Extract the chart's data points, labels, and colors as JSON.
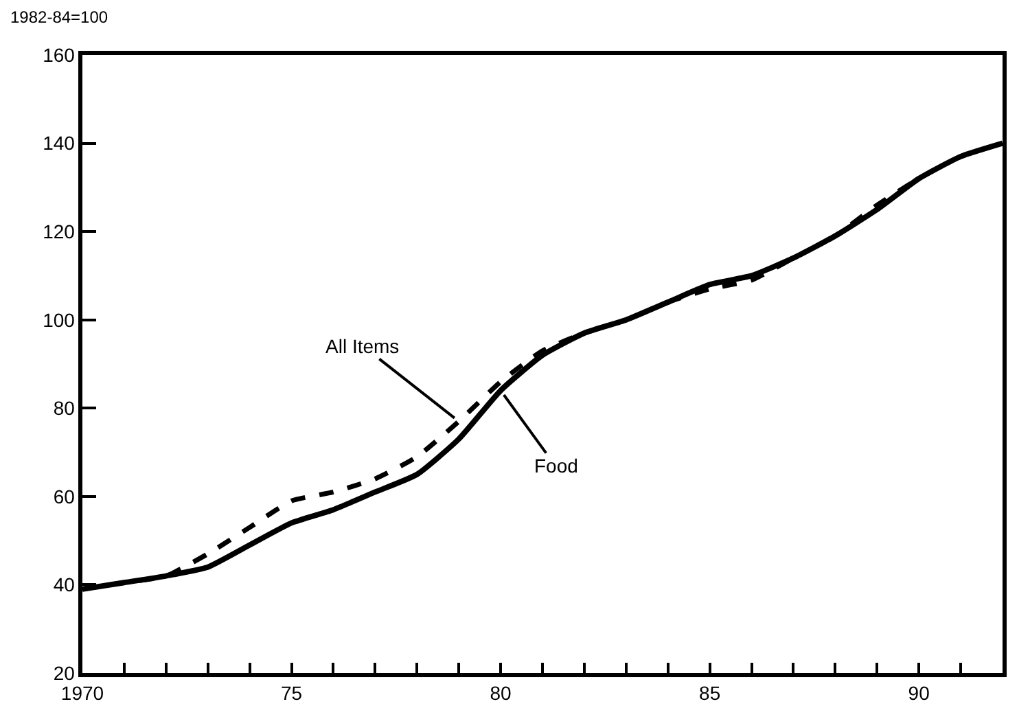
{
  "chart_data": {
    "type": "line",
    "title": "1982-84=100",
    "x": [
      1970,
      1971,
      1972,
      1973,
      1974,
      1975,
      1976,
      1977,
      1978,
      1979,
      1980,
      1981,
      1982,
      1983,
      1984,
      1985,
      1986,
      1987,
      1988,
      1989,
      1990,
      1991,
      1992
    ],
    "series": [
      {
        "color": "#000000",
        "line_style": "solid",
        "values": [
          39,
          40.5,
          42,
          44,
          49,
          54,
          57,
          61,
          65,
          73,
          84,
          92,
          97,
          100,
          104,
          108,
          110,
          114,
          119,
          125,
          132,
          137,
          140
        ]
      },
      {
        "color": "#000000",
        "line_style": "dashed",
        "values": [
          39,
          40.5,
          42,
          47,
          53,
          59,
          61,
          64,
          69,
          77,
          86,
          93,
          97,
          100,
          104,
          107,
          109,
          114,
          119,
          126,
          132,
          137,
          140
        ]
      }
    ],
    "annotations": [
      {
        "text": "All Items",
        "x": 1979,
        "y": 77
      },
      {
        "text": "Food",
        "x": 1980,
        "y": 84
      }
    ],
    "xlim": [
      1970,
      1992
    ],
    "xticks": [
      {
        "value": 1970,
        "label": "1970"
      },
      {
        "value": 1971,
        "label": null
      },
      {
        "value": 1972,
        "label": null
      },
      {
        "value": 1973,
        "label": null
      },
      {
        "value": 1974,
        "label": null
      },
      {
        "value": 1975,
        "label": "75"
      },
      {
        "value": 1976,
        "label": null
      },
      {
        "value": 1977,
        "label": null
      },
      {
        "value": 1978,
        "label": null
      },
      {
        "value": 1979,
        "label": null
      },
      {
        "value": 1980,
        "label": "80"
      },
      {
        "value": 1981,
        "label": null
      },
      {
        "value": 1982,
        "label": null
      },
      {
        "value": 1983,
        "label": null
      },
      {
        "value": 1984,
        "label": null
      },
      {
        "value": 1985,
        "label": "85"
      },
      {
        "value": 1986,
        "label": null
      },
      {
        "value": 1987,
        "label": null
      },
      {
        "value": 1988,
        "label": null
      },
      {
        "value": 1989,
        "label": null
      },
      {
        "value": 1990,
        "label": "90"
      },
      {
        "value": 1991,
        "label": null
      },
      {
        "value": 1992,
        "label": null
      }
    ],
    "ylim": [
      20,
      160
    ],
    "yticks": [
      20,
      40,
      60,
      80,
      100,
      120,
      140,
      160
    ],
    "marker": "none"
  }
}
